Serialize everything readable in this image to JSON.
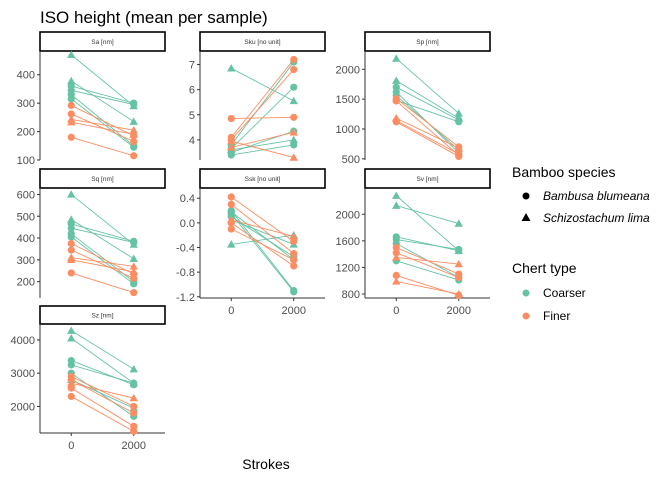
{
  "figure": {
    "title": "ISO height (mean per sample)",
    "xlabel": "Strokes"
  },
  "colors": {
    "Coarser": "#66C2A5",
    "Finer": "#FC8D62",
    "axis": "#333333",
    "tick_text": "#4d4d4d"
  },
  "legend": {
    "species_title": "Bamboo species",
    "species": [
      {
        "label": "Bambusa blumeana",
        "shape": "circle"
      },
      {
        "label": "Schizostachum lima",
        "shape": "triangle"
      }
    ],
    "chert_title": "Chert type",
    "chert": [
      {
        "label": "Coarser",
        "color": "#66C2A5"
      },
      {
        "label": "Finer",
        "color": "#FC8D62"
      }
    ]
  },
  "chart_data": [
    {
      "type": "line",
      "panel": "Sa [nm]",
      "x_categories": [
        0,
        2000
      ],
      "ylim": [
        100,
        480
      ],
      "yticks": [
        100,
        200,
        300,
        400
      ],
      "series": [
        {
          "chert": "Coarser",
          "species": "Schizostachum lima",
          "values": [
            470,
            290
          ]
        },
        {
          "chert": "Coarser",
          "species": "Schizostachum lima",
          "values": [
            378,
            235
          ]
        },
        {
          "chert": "Coarser",
          "species": "Bambusa blumeana",
          "values": [
            360,
            300
          ]
        },
        {
          "chert": "Coarser",
          "species": "Bambusa blumeana",
          "values": [
            345,
            295
          ]
        },
        {
          "chert": "Coarser",
          "species": "Bambusa blumeana",
          "values": [
            330,
            150
          ]
        },
        {
          "chert": "Coarser",
          "species": "Bambusa blumeana",
          "values": [
            315,
            145
          ]
        },
        {
          "chert": "Finer",
          "species": "Bambusa blumeana",
          "values": [
            292,
            185
          ]
        },
        {
          "chert": "Finer",
          "species": "Bambusa blumeana",
          "values": [
            262,
            165
          ]
        },
        {
          "chert": "Finer",
          "species": "Schizostachum lima",
          "values": [
            243,
            205
          ]
        },
        {
          "chert": "Finer",
          "species": "Schizostachum lima",
          "values": [
            233,
            190
          ]
        },
        {
          "chert": "Finer",
          "species": "Bambusa blumeana",
          "values": [
            180,
            115
          ]
        }
      ]
    },
    {
      "type": "line",
      "panel": "Sku [no unit]",
      "x_categories": [
        0,
        2000
      ],
      "ylim": [
        3.2,
        7.5
      ],
      "yticks": [
        4,
        5,
        6,
        7
      ],
      "series": [
        {
          "chert": "Coarser",
          "species": "Schizostachum lima",
          "values": [
            6.85,
            5.55
          ]
        },
        {
          "chert": "Coarser",
          "species": "Bambusa blumeana",
          "values": [
            3.8,
            7.1
          ]
        },
        {
          "chert": "Coarser",
          "species": "Bambusa blumeana",
          "values": [
            3.65,
            6.1
          ]
        },
        {
          "chert": "Coarser",
          "species": "Bambusa blumeana",
          "values": [
            3.5,
            4.35
          ]
        },
        {
          "chert": "Coarser",
          "species": "Schizostachum lima",
          "values": [
            3.6,
            4.0
          ]
        },
        {
          "chert": "Coarser",
          "species": "Bambusa blumeana",
          "values": [
            3.4,
            3.8
          ]
        },
        {
          "chert": "Finer",
          "species": "Bambusa blumeana",
          "values": [
            4.85,
            4.9
          ]
        },
        {
          "chert": "Finer",
          "species": "Bambusa blumeana",
          "values": [
            4.1,
            7.2
          ]
        },
        {
          "chert": "Finer",
          "species": "Bambusa blumeana",
          "values": [
            4.0,
            6.8
          ]
        },
        {
          "chert": "Finer",
          "species": "Schizostachum lima",
          "values": [
            3.95,
            3.3
          ]
        },
        {
          "chert": "Finer",
          "species": "Schizostachum lima",
          "values": [
            3.7,
            4.3
          ]
        }
      ]
    },
    {
      "type": "line",
      "panel": "Sp [nm]",
      "x_categories": [
        0,
        2000
      ],
      "ylim": [
        480,
        2290
      ],
      "yticks": [
        500,
        1000,
        1500,
        2000
      ],
      "series": [
        {
          "chert": "Coarser",
          "species": "Schizostachum lima",
          "values": [
            2180,
            1260
          ]
        },
        {
          "chert": "Coarser",
          "species": "Schizostachum lima",
          "values": [
            1810,
            1180
          ]
        },
        {
          "chert": "Coarser",
          "species": "Bambusa blumeana",
          "values": [
            1700,
            1150
          ]
        },
        {
          "chert": "Coarser",
          "species": "Bambusa blumeana",
          "values": [
            1620,
            600
          ]
        },
        {
          "chert": "Coarser",
          "species": "Bambusa blumeana",
          "values": [
            1560,
            650
          ]
        },
        {
          "chert": "Coarser",
          "species": "Bambusa blumeana",
          "values": [
            1480,
            1120
          ]
        },
        {
          "chert": "Finer",
          "species": "Bambusa blumeana",
          "values": [
            1510,
            700
          ]
        },
        {
          "chert": "Finer",
          "species": "Bambusa blumeana",
          "values": [
            1470,
            560
          ]
        },
        {
          "chert": "Finer",
          "species": "Schizostachum lima",
          "values": [
            1180,
            680
          ]
        },
        {
          "chert": "Finer",
          "species": "Bambusa blumeana",
          "values": [
            1140,
            580
          ]
        },
        {
          "chert": "Finer",
          "species": "Bambusa blumeana",
          "values": [
            1120,
            540
          ]
        }
      ]
    },
    {
      "type": "line",
      "panel": "Sq [nm]",
      "x_categories": [
        0,
        2000
      ],
      "ylim": [
        125,
        625
      ],
      "yticks": [
        200,
        300,
        400,
        500,
        600
      ],
      "series": [
        {
          "chert": "Coarser",
          "species": "Schizostachum lima",
          "values": [
            600,
            370
          ]
        },
        {
          "chert": "Coarser",
          "species": "Schizostachum lima",
          "values": [
            485,
            305
          ]
        },
        {
          "chert": "Coarser",
          "species": "Bambusa blumeana",
          "values": [
            465,
            385
          ]
        },
        {
          "chert": "Coarser",
          "species": "Bambusa blumeana",
          "values": [
            445,
            380
          ]
        },
        {
          "chert": "Coarser",
          "species": "Bambusa blumeana",
          "values": [
            420,
            200
          ]
        },
        {
          "chert": "Coarser",
          "species": "Bambusa blumeana",
          "values": [
            405,
            190
          ]
        },
        {
          "chert": "Finer",
          "species": "Bambusa blumeana",
          "values": [
            375,
            235
          ]
        },
        {
          "chert": "Finer",
          "species": "Bambusa blumeana",
          "values": [
            345,
            215
          ]
        },
        {
          "chert": "Finer",
          "species": "Schizostachum lima",
          "values": [
            310,
            270
          ]
        },
        {
          "chert": "Finer",
          "species": "Schizostachum lima",
          "values": [
            300,
            245
          ]
        },
        {
          "chert": "Finer",
          "species": "Bambusa blumeana",
          "values": [
            240,
            150
          ]
        }
      ]
    },
    {
      "type": "line",
      "panel": "Ssk [no unit]",
      "x_categories": [
        0,
        2000
      ],
      "ylim": [
        -1.22,
        0.55
      ],
      "yticks": [
        -1.2,
        -0.8,
        -0.4,
        0.0,
        0.4
      ],
      "series": [
        {
          "chert": "Coarser",
          "species": "Schizostachum lima",
          "values": [
            -0.35,
            -0.2
          ]
        },
        {
          "chert": "Coarser",
          "species": "Bambusa blumeana",
          "values": [
            0.2,
            -1.1
          ]
        },
        {
          "chert": "Coarser",
          "species": "Bambusa blumeana",
          "values": [
            0.15,
            -1.12
          ]
        },
        {
          "chert": "Coarser",
          "species": "Bambusa blumeana",
          "values": [
            0.1,
            -0.55
          ]
        },
        {
          "chert": "Coarser",
          "species": "Schizostachum lima",
          "values": [
            0.05,
            -0.35
          ]
        },
        {
          "chert": "Coarser",
          "species": "Bambusa blumeana",
          "values": [
            0.18,
            -0.6
          ]
        },
        {
          "chert": "Finer",
          "species": "Bambusa blumeana",
          "values": [
            0.42,
            -0.3
          ]
        },
        {
          "chert": "Finer",
          "species": "Bambusa blumeana",
          "values": [
            0.3,
            -0.5
          ]
        },
        {
          "chert": "Finer",
          "species": "Schizostachum lima",
          "values": [
            0.05,
            -0.22
          ]
        },
        {
          "chert": "Finer",
          "species": "Bambusa blumeana",
          "values": [
            -0.1,
            -0.6
          ]
        },
        {
          "chert": "Finer",
          "species": "Bambusa blumeana",
          "values": [
            0.0,
            -0.7
          ]
        }
      ]
    },
    {
      "type": "line",
      "panel": "Sv [nm]",
      "x_categories": [
        0,
        2000
      ],
      "ylim": [
        740,
        2380
      ],
      "yticks": [
        800,
        1200,
        1600,
        2000
      ],
      "series": [
        {
          "chert": "Coarser",
          "species": "Schizostachum lima",
          "values": [
            2280,
            1450
          ]
        },
        {
          "chert": "Coarser",
          "species": "Schizostachum lima",
          "values": [
            2130,
            1860
          ]
        },
        {
          "chert": "Coarser",
          "species": "Bambusa blumeana",
          "values": [
            1660,
            1450
          ]
        },
        {
          "chert": "Coarser",
          "species": "Bambusa blumeana",
          "values": [
            1620,
            1470
          ]
        },
        {
          "chert": "Coarser",
          "species": "Bambusa blumeana",
          "values": [
            1560,
            1050
          ]
        },
        {
          "chert": "Coarser",
          "species": "Bambusa blumeana",
          "values": [
            1300,
            1010
          ]
        },
        {
          "chert": "Finer",
          "species": "Bambusa blumeana",
          "values": [
            1500,
            1100
          ]
        },
        {
          "chert": "Finer",
          "species": "Bambusa blumeana",
          "values": [
            1420,
            1050
          ]
        },
        {
          "chert": "Finer",
          "species": "Schizostachum lima",
          "values": [
            1350,
            1250
          ]
        },
        {
          "chert": "Finer",
          "species": "Bambusa blumeana",
          "values": [
            1080,
            780
          ]
        },
        {
          "chert": "Finer",
          "species": "Schizostachum lima",
          "values": [
            990,
            800
          ]
        }
      ]
    },
    {
      "type": "line",
      "panel": "Sz [nm]",
      "x_categories": [
        0,
        2000
      ],
      "ylim": [
        1200,
        4450
      ],
      "yticks": [
        2000,
        3000,
        4000
      ],
      "series": [
        {
          "chert": "Coarser",
          "species": "Schizostachum lima",
          "values": [
            4280,
            3120
          ]
        },
        {
          "chert": "Coarser",
          "species": "Schizostachum lima",
          "values": [
            4050,
            2700
          ]
        },
        {
          "chert": "Coarser",
          "species": "Bambusa blumeana",
          "values": [
            3380,
            2650
          ]
        },
        {
          "chert": "Coarser",
          "species": "Bambusa blumeana",
          "values": [
            3250,
            2700
          ]
        },
        {
          "chert": "Coarser",
          "species": "Bambusa blumeana",
          "values": [
            3000,
            1700
          ]
        },
        {
          "chert": "Coarser",
          "species": "Schizostachum lima",
          "values": [
            2800,
            1950
          ]
        },
        {
          "chert": "Finer",
          "species": "Bambusa blumeana",
          "values": [
            2900,
            2000
          ]
        },
        {
          "chert": "Finer",
          "species": "Bambusa blumeana",
          "values": [
            2800,
            1800
          ]
        },
        {
          "chert": "Finer",
          "species": "Schizostachum lima",
          "values": [
            2700,
            2250
          ]
        },
        {
          "chert": "Finer",
          "species": "Bambusa blumeana",
          "values": [
            2550,
            1400
          ]
        },
        {
          "chert": "Finer",
          "species": "Bambusa blumeana",
          "values": [
            2300,
            1250
          ]
        }
      ]
    }
  ]
}
